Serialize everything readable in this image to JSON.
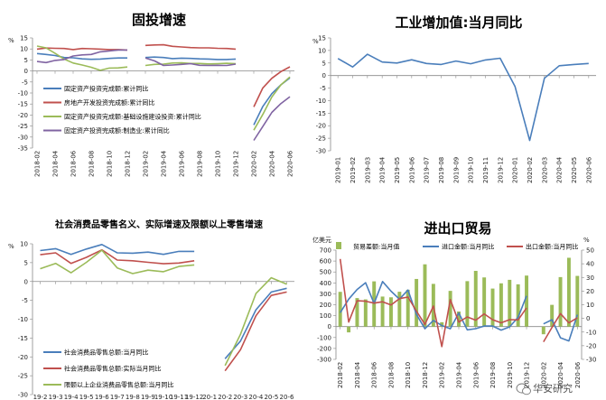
{
  "watermark": "华安研究",
  "colors": {
    "blue": "#4a7ebb",
    "red": "#c0504d",
    "green": "#9bbb59",
    "purple": "#8064a2",
    "axis": "#888888"
  },
  "chart_data": [
    {
      "type": "line",
      "title": "固投增速",
      "ylabel": "%",
      "ylim": [
        -35,
        15
      ],
      "yticks": [
        15,
        10,
        5,
        0,
        -5,
        -10,
        -15,
        -20,
        -25,
        -30,
        -35
      ],
      "x": [
        "2018-02",
        "2018-03",
        "2018-04",
        "2018-05",
        "2018-06",
        "2018-07",
        "2018-08",
        "2018-09",
        "2018-10",
        "2018-11",
        "2018-12",
        "2019-01",
        "2019-02",
        "2019-03",
        "2019-04",
        "2019-05",
        "2019-06",
        "2019-07",
        "2019-08",
        "2019-09",
        "2019-10",
        "2019-11",
        "2019-12",
        "2020-01",
        "2020-02",
        "2020-03",
        "2020-04",
        "2020-05",
        "2020-06"
      ],
      "xticklabels": [
        "2018-02",
        "2018-04",
        "2018-06",
        "2018-08",
        "2018-10",
        "2018-12",
        "2019-02",
        "2019-04",
        "2019-06",
        "2019-08",
        "2019-10",
        "2019-12",
        "2020-02",
        "2020-04",
        "2020-06"
      ],
      "legend_loc": "lower-left",
      "series": [
        {
          "name": "固定资产投资完成额:累计同比",
          "color": "#4a7ebb",
          "values": [
            7.9,
            7.5,
            7.0,
            6.1,
            6.0,
            5.5,
            5.3,
            5.4,
            5.7,
            5.9,
            5.9,
            null,
            6.1,
            6.3,
            6.1,
            5.6,
            5.8,
            5.7,
            5.5,
            5.4,
            5.2,
            5.2,
            5.4,
            null,
            -24.5,
            -16.1,
            -10.3,
            -6.3,
            -3.1
          ]
        },
        {
          "name": "房地产开发投资完成额:累计同比",
          "color": "#c0504d",
          "values": [
            9.9,
            10.4,
            10.3,
            10.2,
            9.7,
            10.2,
            10.1,
            9.9,
            9.7,
            9.7,
            9.5,
            null,
            11.6,
            11.8,
            11.9,
            11.2,
            10.9,
            10.6,
            10.5,
            10.5,
            10.3,
            10.2,
            9.9,
            null,
            -16.3,
            -7.7,
            -3.3,
            -0.3,
            1.9
          ]
        },
        {
          "name": "固定资产投资完成额:基础设施建设投资:累计同比",
          "color": "#9bbb59",
          "values": [
            11.3,
            10.5,
            8.0,
            5.4,
            3.6,
            2.7,
            1.7,
            0.3,
            1.3,
            1.4,
            1.8,
            null,
            2.5,
            3.0,
            3.1,
            3.6,
            3.7,
            3.4,
            3.4,
            3.2,
            3.3,
            3.5,
            3.3,
            null,
            -26.9,
            -19.7,
            -11.8,
            -6.3,
            -2.7
          ]
        },
        {
          "name": "固定资产投资完成额:制造业:累计同比",
          "color": "#8064a2",
          "values": [
            4.3,
            3.8,
            4.8,
            5.2,
            6.8,
            7.3,
            7.5,
            8.7,
            9.1,
            9.5,
            9.5,
            null,
            5.9,
            4.6,
            2.5,
            2.7,
            3.0,
            3.3,
            2.6,
            2.5,
            2.6,
            2.5,
            3.1,
            null,
            -31.5,
            -25.2,
            -18.8,
            -14.8,
            -11.7
          ]
        }
      ]
    },
    {
      "type": "line",
      "title": "工业增加值:当月同比",
      "ylabel": "%",
      "ylim": [
        -30,
        15
      ],
      "yticks": [
        15,
        10,
        5,
        0,
        -5,
        -10,
        -15,
        -20,
        -25,
        -30
      ],
      "x": [
        "2019-01",
        "2019-02",
        "2019-03",
        "2019-04",
        "2019-05",
        "2019-06",
        "2019-07",
        "2019-08",
        "2019-09",
        "2019-10",
        "2019-11",
        "2019-12",
        "2020-01",
        "2020-02",
        "2020-03",
        "2020-04",
        "2020-05",
        "2020-06"
      ],
      "xticklabels": [
        "2019-01",
        "2019-02",
        "2019-03",
        "2019-04",
        "2019-05",
        "2019-06",
        "2019-07",
        "2019-08",
        "2019-09",
        "2019-10",
        "2019-11",
        "2019-12",
        "2020-01",
        "2020-02",
        "2020-03",
        "2020-04",
        "2020-05",
        "2020-06"
      ],
      "series": [
        {
          "name": "",
          "color": "#4a7ebb",
          "values": [
            6.8,
            3.4,
            8.5,
            5.4,
            5.0,
            6.3,
            4.8,
            4.4,
            5.8,
            4.7,
            6.2,
            6.9,
            -4.3,
            -25.9,
            -1.1,
            3.9,
            4.4,
            4.8
          ]
        }
      ]
    },
    {
      "type": "line",
      "title": "社会消费品零售名义、实际增速及限额以上零售增速",
      "ylabel": "%",
      "ylim": [
        -30,
        10
      ],
      "yticks": [
        10,
        5,
        0,
        -5,
        -10,
        -15,
        -20,
        -25,
        -30
      ],
      "x": [
        "19-2",
        "19-3",
        "19-4",
        "19-5",
        "19-6",
        "19-7",
        "19-8",
        "19-9",
        "19-10",
        "19-11",
        "19-12",
        "20-1",
        "20-2",
        "20-3",
        "20-4",
        "20-5",
        "20-6"
      ],
      "xticklabels": [
        "19-2",
        "19-3",
        "19-4",
        "19-5",
        "19-6",
        "19-7",
        "19-8",
        "19-9",
        "19-10",
        "19-11",
        "19-12",
        "20-1",
        "20-2",
        "20-3",
        "20-4",
        "20-5",
        "20-6"
      ],
      "legend_loc": "lower-left",
      "series": [
        {
          "name": "社会消费品零售总额:当月同比",
          "color": "#4a7ebb",
          "values": [
            8.2,
            8.7,
            7.2,
            8.6,
            9.8,
            7.6,
            7.5,
            7.8,
            7.2,
            8.0,
            8.0,
            null,
            -20.5,
            -15.8,
            -7.5,
            -2.8,
            -1.8
          ]
        },
        {
          "name": "社会消费品零售总额:实际当月同比",
          "color": "#c0504d",
          "values": [
            7.1,
            7.6,
            4.8,
            6.4,
            8.4,
            5.7,
            5.5,
            5.1,
            4.7,
            4.9,
            5.5,
            null,
            -23.7,
            -18.1,
            -9.1,
            -3.7,
            -2.8
          ]
        },
        {
          "name": "限额以上企业消费品零售总额:当月同比",
          "color": "#9bbb59",
          "values": [
            3.4,
            4.8,
            2.3,
            5.1,
            8.3,
            3.6,
            2.1,
            3.0,
            2.6,
            4.0,
            4.4,
            null,
            -22.3,
            -14.0,
            -3.2,
            1.0,
            -0.7
          ]
        }
      ]
    },
    {
      "type": "bar+line",
      "title": "进出口贸易",
      "ylabel_left": "亿美元",
      "ylabel_right": "%",
      "ylim_left": [
        -300,
        700
      ],
      "yticks_left": [
        700,
        600,
        500,
        400,
        300,
        200,
        100,
        0,
        -100,
        -200,
        -300
      ],
      "ylim_right": [
        -30,
        50
      ],
      "yticks_right": [
        50,
        40,
        30,
        20,
        10,
        0,
        -10,
        -20,
        -30
      ],
      "x": [
        "2018-02",
        "2018-03",
        "2018-04",
        "2018-05",
        "2018-06",
        "2018-07",
        "2018-08",
        "2018-09",
        "2018-10",
        "2018-11",
        "2018-12",
        "2019-01",
        "2019-02",
        "2019-03",
        "2019-04",
        "2019-05",
        "2019-06",
        "2019-07",
        "2019-08",
        "2019-09",
        "2019-10",
        "2019-11",
        "2019-12",
        "2020-01",
        "2020-02",
        "2020-03",
        "2020-04",
        "2020-05",
        "2020-06"
      ],
      "xticklabels": [
        "2018-02",
        "2018-04",
        "2018-06",
        "2018-08",
        "2018-10",
        "2018-12",
        "2019-02",
        "2019-04",
        "2019-06",
        "2019-08",
        "2019-10",
        "2019-12",
        "2020-02",
        "2020-04",
        "2020-06"
      ],
      "bars": {
        "name": "贸易差额:当月值",
        "color": "#9bbb59",
        "axis": "left",
        "values": [
          318,
          -53,
          261,
          249,
          414,
          275,
          268,
          319,
          337,
          436,
          570,
          391,
          40,
          327,
          138,
          416,
          510,
          450,
          348,
          396,
          428,
          387,
          467,
          null,
          -70,
          199,
          453,
          630,
          464
        ]
      },
      "series": [
        {
          "name": "进口金额:当月同比",
          "color": "#4a7ebb",
          "axis": "right",
          "values": [
            4.2,
            14.1,
            21.2,
            26.1,
            10.9,
            27.0,
            19.9,
            14.1,
            20.8,
            2.9,
            -7.6,
            -1.5,
            -5.2,
            -7.6,
            4.0,
            -8.4,
            -7.5,
            -5.6,
            -5.6,
            -8.6,
            -6.2,
            0.8,
            16.5,
            null,
            -4.0,
            -1.0,
            -14.2,
            -16.5,
            2.7
          ]
        },
        {
          "name": "出口金额:当月同比",
          "color": "#c0504d",
          "axis": "right",
          "values": [
            43.5,
            -2.7,
            12.9,
            12.6,
            11.2,
            12.2,
            9.8,
            14.5,
            15.6,
            5.4,
            -4.4,
            9.1,
            -20.7,
            13.8,
            -2.7,
            1.1,
            -1.3,
            3.3,
            -1.0,
            -3.2,
            -0.9,
            -1.1,
            7.6,
            null,
            -17.2,
            -6.6,
            3.5,
            -3.3,
            0.5
          ]
        }
      ]
    }
  ]
}
